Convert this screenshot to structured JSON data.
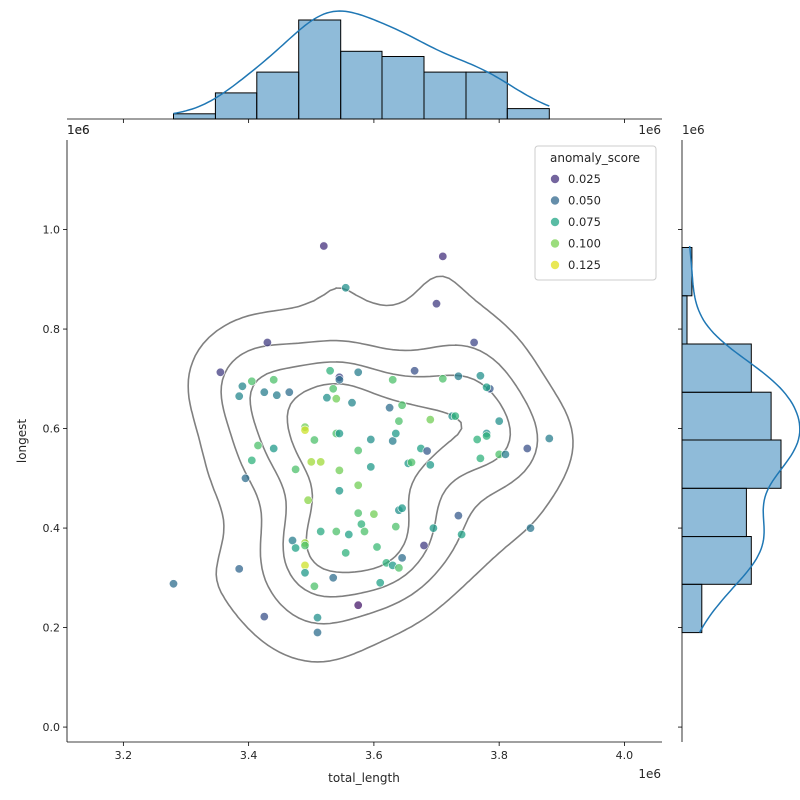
{
  "chart_data": {
    "type": "scatter",
    "subtype": "jointplot",
    "x_label": "total_length",
    "y_label": "longest",
    "x_offset_label": "1e6",
    "y_offset_label": "1e6",
    "x_range": [
      3.11,
      4.06
    ],
    "y_range": [
      -0.03,
      1.18
    ],
    "x_ticks": [
      3.2,
      3.4,
      3.6,
      3.8,
      4.0
    ],
    "x_tick_labels": [
      "3.2",
      "3.4",
      "3.6",
      "3.8",
      "4.0"
    ],
    "y_ticks": [
      0.0,
      0.2,
      0.4,
      0.6,
      0.8,
      1.0
    ],
    "y_tick_labels": [
      "0.0",
      "0.2",
      "0.4",
      "0.6",
      "0.8",
      "1.0"
    ],
    "hue_variable": "anomaly_score",
    "legend": {
      "title": "anomaly_score",
      "position": "top-right",
      "entries": [
        {
          "label": "0.025",
          "color": "#46327e"
        },
        {
          "label": "0.050",
          "color": "#31688e"
        },
        {
          "label": "0.075",
          "color": "#21a585"
        },
        {
          "label": "0.100",
          "color": "#7ad151"
        },
        {
          "label": "0.125",
          "color": "#e1e01c"
        }
      ]
    },
    "color_scale": {
      "min": 0.0,
      "max": 0.14,
      "colormap": "viridis"
    },
    "points": [
      [
        3.355,
        0.713,
        0.025
      ],
      [
        3.43,
        0.773,
        0.025
      ],
      [
        3.52,
        0.967,
        0.02
      ],
      [
        3.71,
        0.946,
        0.02
      ],
      [
        3.7,
        0.851,
        0.025
      ],
      [
        3.76,
        0.773,
        0.03
      ],
      [
        3.28,
        0.288,
        0.05
      ],
      [
        3.385,
        0.318,
        0.045
      ],
      [
        3.425,
        0.222,
        0.035
      ],
      [
        3.575,
        0.245,
        0.01
      ],
      [
        3.68,
        0.365,
        0.025
      ],
      [
        3.845,
        0.56,
        0.035
      ],
      [
        3.88,
        0.58,
        0.06
      ],
      [
        3.85,
        0.4,
        0.055
      ],
      [
        3.545,
        0.703,
        0.03
      ],
      [
        3.665,
        0.716,
        0.035
      ],
      [
        3.785,
        0.68,
        0.04
      ],
      [
        3.395,
        0.5,
        0.05
      ],
      [
        3.555,
        0.883,
        0.07
      ],
      [
        3.39,
        0.685,
        0.065
      ],
      [
        3.385,
        0.665,
        0.065
      ],
      [
        3.405,
        0.695,
        0.1
      ],
      [
        3.425,
        0.673,
        0.06
      ],
      [
        3.44,
        0.698,
        0.1
      ],
      [
        3.445,
        0.667,
        0.06
      ],
      [
        3.465,
        0.673,
        0.05
      ],
      [
        3.44,
        0.56,
        0.075
      ],
      [
        3.415,
        0.566,
        0.1
      ],
      [
        3.405,
        0.536,
        0.09
      ],
      [
        3.475,
        0.518,
        0.1
      ],
      [
        3.49,
        0.603,
        0.11
      ],
      [
        3.49,
        0.597,
        0.13
      ],
      [
        3.505,
        0.577,
        0.1
      ],
      [
        3.5,
        0.533,
        0.12
      ],
      [
        3.515,
        0.533,
        0.12
      ],
      [
        3.495,
        0.456,
        0.115
      ],
      [
        3.47,
        0.375,
        0.06
      ],
      [
        3.475,
        0.36,
        0.08
      ],
      [
        3.49,
        0.37,
        0.12
      ],
      [
        3.49,
        0.365,
        0.1
      ],
      [
        3.49,
        0.325,
        0.13
      ],
      [
        3.49,
        0.31,
        0.075
      ],
      [
        3.505,
        0.283,
        0.1
      ],
      [
        3.51,
        0.22,
        0.07
      ],
      [
        3.51,
        0.19,
        0.05
      ],
      [
        3.515,
        0.393,
        0.085
      ],
      [
        3.535,
        0.3,
        0.05
      ],
      [
        3.54,
        0.393,
        0.1
      ],
      [
        3.555,
        0.35,
        0.09
      ],
      [
        3.56,
        0.387,
        0.08
      ],
      [
        3.575,
        0.43,
        0.1
      ],
      [
        3.58,
        0.408,
        0.09
      ],
      [
        3.585,
        0.393,
        0.1
      ],
      [
        3.6,
        0.428,
        0.11
      ],
      [
        3.605,
        0.362,
        0.095
      ],
      [
        3.61,
        0.29,
        0.08
      ],
      [
        3.62,
        0.33,
        0.09
      ],
      [
        3.63,
        0.325,
        0.075
      ],
      [
        3.635,
        0.403,
        0.1
      ],
      [
        3.64,
        0.32,
        0.1
      ],
      [
        3.645,
        0.34,
        0.05
      ],
      [
        3.545,
        0.475,
        0.075
      ],
      [
        3.545,
        0.516,
        0.11
      ],
      [
        3.575,
        0.486,
        0.11
      ],
      [
        3.575,
        0.556,
        0.1
      ],
      [
        3.54,
        0.59,
        0.1
      ],
      [
        3.545,
        0.59,
        0.075
      ],
      [
        3.525,
        0.662,
        0.07
      ],
      [
        3.53,
        0.716,
        0.09
      ],
      [
        3.535,
        0.68,
        0.1
      ],
      [
        3.54,
        0.66,
        0.11
      ],
      [
        3.545,
        0.698,
        0.05
      ],
      [
        3.565,
        0.652,
        0.065
      ],
      [
        3.575,
        0.713,
        0.06
      ],
      [
        3.595,
        0.578,
        0.07
      ],
      [
        3.595,
        0.523,
        0.075
      ],
      [
        3.625,
        0.642,
        0.05
      ],
      [
        3.63,
        0.575,
        0.06
      ],
      [
        3.635,
        0.59,
        0.075
      ],
      [
        3.63,
        0.698,
        0.1
      ],
      [
        3.64,
        0.615,
        0.1
      ],
      [
        3.64,
        0.436,
        0.07
      ],
      [
        3.645,
        0.44,
        0.075
      ],
      [
        3.645,
        0.647,
        0.1
      ],
      [
        3.655,
        0.53,
        0.075
      ],
      [
        3.66,
        0.532,
        0.1
      ],
      [
        3.675,
        0.56,
        0.08
      ],
      [
        3.685,
        0.555,
        0.04
      ],
      [
        3.69,
        0.618,
        0.11
      ],
      [
        3.69,
        0.527,
        0.075
      ],
      [
        3.695,
        0.4,
        0.075
      ],
      [
        3.71,
        0.7,
        0.1
      ],
      [
        3.725,
        0.625,
        0.07
      ],
      [
        3.73,
        0.625,
        0.09
      ],
      [
        3.735,
        0.705,
        0.06
      ],
      [
        3.735,
        0.425,
        0.04
      ],
      [
        3.74,
        0.387,
        0.08
      ],
      [
        3.765,
        0.578,
        0.09
      ],
      [
        3.77,
        0.706,
        0.07
      ],
      [
        3.77,
        0.54,
        0.09
      ],
      [
        3.78,
        0.683,
        0.08
      ],
      [
        3.78,
        0.59,
        0.07
      ],
      [
        3.78,
        0.585,
        0.09
      ],
      [
        3.8,
        0.615,
        0.07
      ],
      [
        3.8,
        0.548,
        0.1
      ],
      [
        3.81,
        0.548,
        0.06
      ]
    ],
    "top_histogram": {
      "bin_edges": [
        3.28,
        3.347,
        3.413,
        3.48,
        3.547,
        3.613,
        3.68,
        3.747,
        3.813,
        3.88
      ],
      "counts": [
        1,
        5,
        9,
        19,
        13,
        12,
        9,
        9,
        2
      ]
    },
    "right_histogram": {
      "bin_edges": [
        0.19,
        0.287,
        0.383,
        0.48,
        0.577,
        0.673,
        0.77,
        0.867,
        0.964
      ],
      "counts": [
        4,
        14,
        13,
        20,
        18,
        14,
        1,
        2
      ]
    }
  }
}
